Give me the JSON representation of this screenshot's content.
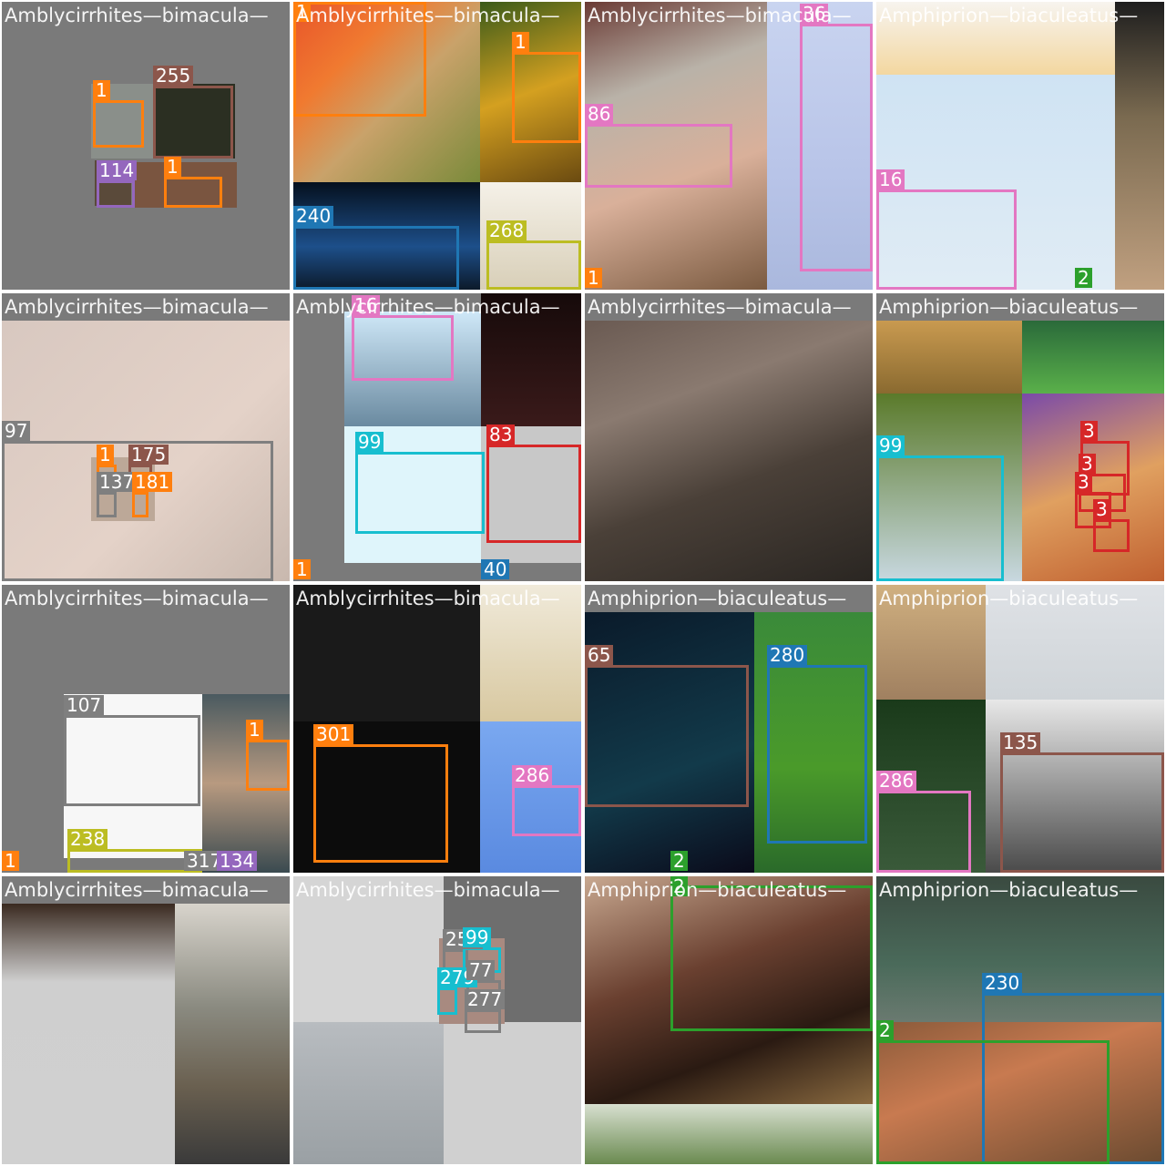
{
  "palette": {
    "orange": "#ff7f0e",
    "brown": "#8c564b",
    "purple": "#9467bd",
    "pink": "#e377c2",
    "blue": "#1f77b4",
    "olive": "#bcbd22",
    "green": "#2ca02c",
    "red": "#d62728",
    "cyan": "#17becf",
    "gray": "#7f7f7f"
  },
  "tiles": [
    {
      "title": "Amblycirrhites—bimacula—",
      "labels": [
        {
          "text": "1",
          "color": "orange"
        },
        {
          "text": "255",
          "color": "brown"
        },
        {
          "text": "114",
          "color": "purple"
        },
        {
          "text": "1",
          "color": "orange"
        }
      ]
    },
    {
      "title": "Amblycirrhites—bimacula—",
      "labels": [
        {
          "text": "1",
          "color": "orange"
        },
        {
          "text": "240",
          "color": "blue"
        },
        {
          "text": "268",
          "color": "olive"
        },
        {
          "text": "1",
          "color": "orange"
        }
      ]
    },
    {
      "title": "Amblycirrhites—bimacula—",
      "labels": [
        {
          "text": "36",
          "color": "pink"
        },
        {
          "text": "86",
          "color": "pink"
        },
        {
          "text": "1",
          "color": "orange"
        }
      ]
    },
    {
      "title": "Amphiprion—biaculeatus—",
      "labels": [
        {
          "text": "16",
          "color": "pink"
        },
        {
          "text": "2",
          "color": "green"
        }
      ]
    },
    {
      "title": "Amblycirrhites—bimacula—",
      "labels": [
        {
          "text": "97",
          "color": "gray"
        },
        {
          "text": "1",
          "color": "orange"
        },
        {
          "text": "175",
          "color": "brown"
        },
        {
          "text": "137",
          "color": "gray"
        },
        {
          "text": "181",
          "color": "orange"
        }
      ]
    },
    {
      "title": "Amblycirrhites—bimacula—",
      "labels": [
        {
          "text": "16",
          "color": "pink"
        },
        {
          "text": "99",
          "color": "cyan"
        },
        {
          "text": "83",
          "color": "red"
        },
        {
          "text": "1",
          "color": "orange"
        },
        {
          "text": "40",
          "color": "blue"
        }
      ]
    },
    {
      "title": "Amblycirrhites—bimacula—",
      "labels": []
    },
    {
      "title": "Amphiprion—biaculeatus—",
      "labels": [
        {
          "text": "99",
          "color": "cyan"
        },
        {
          "text": "3",
          "color": "red"
        },
        {
          "text": "3",
          "color": "red"
        },
        {
          "text": "3",
          "color": "red"
        },
        {
          "text": "3",
          "color": "red"
        }
      ]
    },
    {
      "title": "Amblycirrhites—bimacula—",
      "labels": [
        {
          "text": "107",
          "color": "gray"
        },
        {
          "text": "1",
          "color": "orange"
        },
        {
          "text": "238",
          "color": "olive"
        },
        {
          "text": "317",
          "color": "gray"
        },
        {
          "text": "134",
          "color": "purple"
        },
        {
          "text": "1",
          "color": "orange"
        }
      ]
    },
    {
      "title": "Amblycirrhites—bimacula—",
      "labels": [
        {
          "text": "301",
          "color": "orange"
        },
        {
          "text": "286",
          "color": "pink"
        }
      ]
    },
    {
      "title": "Amphiprion—biaculeatus—",
      "labels": [
        {
          "text": "65",
          "color": "brown"
        },
        {
          "text": "280",
          "color": "blue"
        },
        {
          "text": "2",
          "color": "green"
        }
      ]
    },
    {
      "title": "Amphiprion—biaculeatus—",
      "labels": [
        {
          "text": "286",
          "color": "pink"
        },
        {
          "text": "135",
          "color": "brown"
        }
      ]
    },
    {
      "title": "Amblycirrhites—bimacula—",
      "labels": []
    },
    {
      "title": "Amblycirrhites—bimacula—",
      "labels": [
        {
          "text": "257",
          "color": "gray"
        },
        {
          "text": "99",
          "color": "cyan"
        },
        {
          "text": "279",
          "color": "cyan"
        },
        {
          "text": "77",
          "color": "gray"
        },
        {
          "text": "277",
          "color": "gray"
        }
      ]
    },
    {
      "title": "Amphiprion—biaculeatus—",
      "labels": [
        {
          "text": "2",
          "color": "green"
        }
      ]
    },
    {
      "title": "Amphiprion—biaculeatus—",
      "labels": [
        {
          "text": "230",
          "color": "blue"
        },
        {
          "text": "2",
          "color": "green"
        }
      ]
    }
  ]
}
